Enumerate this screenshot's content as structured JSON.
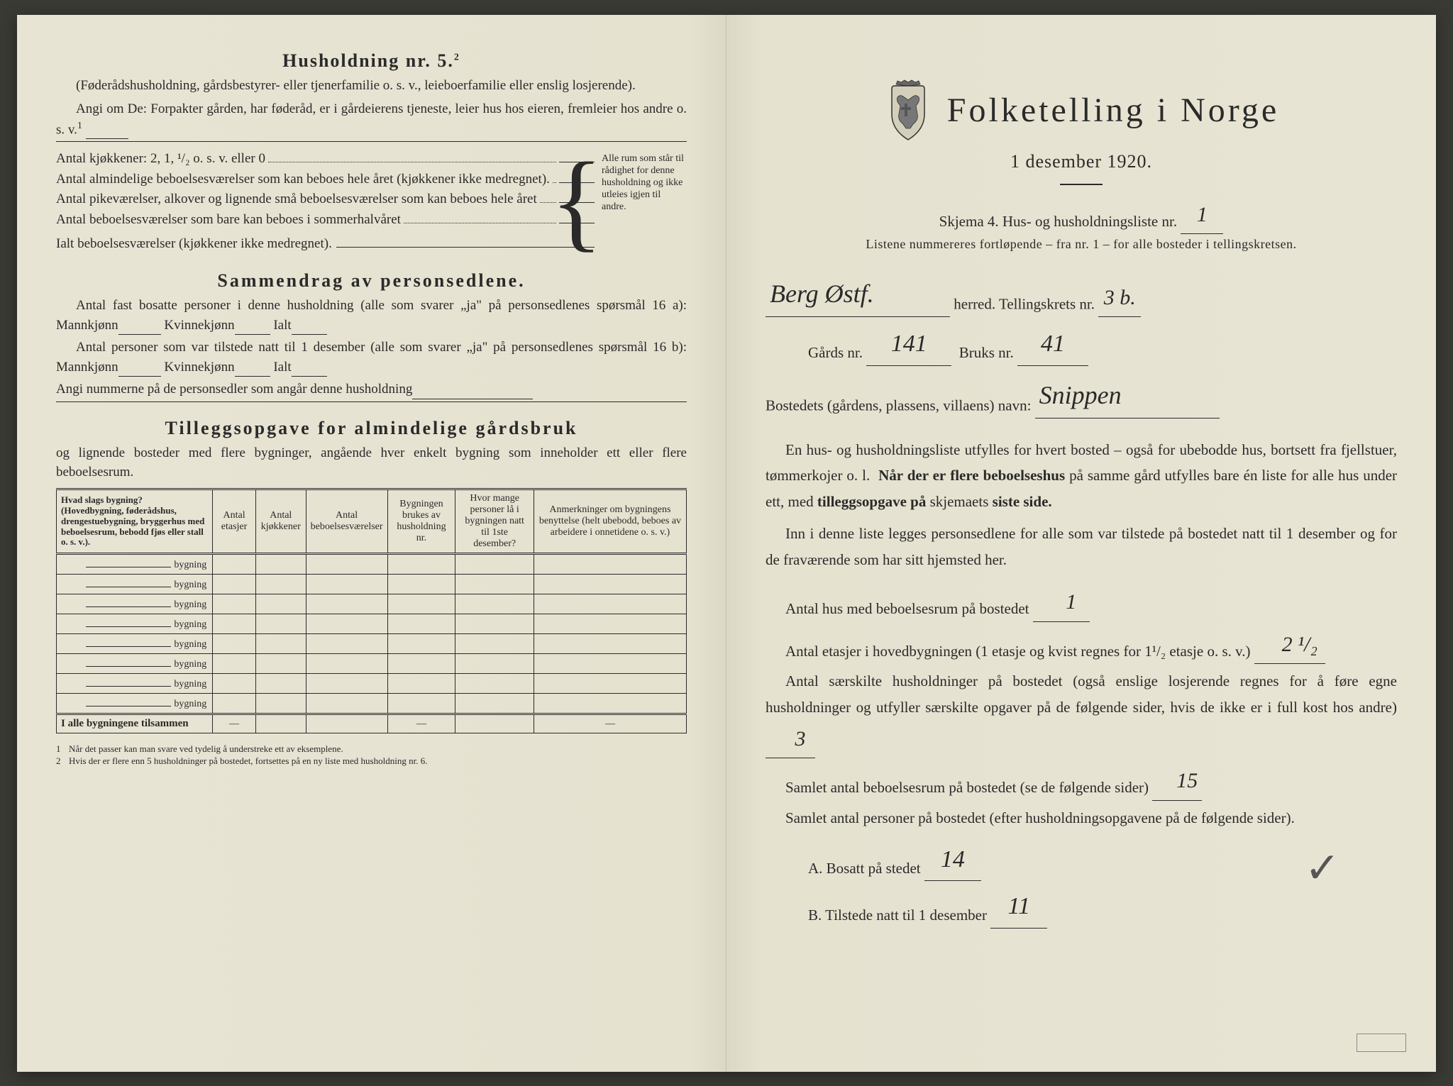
{
  "left": {
    "husholdning_title": "Husholdning nr. 5.",
    "husholdning_sup": "2",
    "husholdning_desc": "(Føderådshusholdning, gårdsbestyrer- eller tjenerfamilie o. s. v., leieboerfamilie eller enslig losjerende).",
    "angi_text": "Angi om De: Forpakter gården, har føderåd, er i gårdeierens tjeneste, leier hus hos eieren, fremleier hos andre o. s. v.",
    "angi_sup": "1",
    "kjokkener_line": "Antal kjøkkener: 2, 1, ¹/₂ o. s. v. eller 0",
    "rooms": [
      "Antal almindelige beboelsesværelser som kan beboes hele året (kjøkkener ikke medregnet).",
      "Antal pikeværelser, alkover og lignende små beboelsesværelser som kan beboes hele året",
      "Antal beboelsesværelser som bare kan beboes i sommerhalvåret",
      "Ialt beboelsesværelser (kjøkkener ikke medregnet)."
    ],
    "brace_text": "Alle rum som står til rådighet for denne husholdning og ikke utleies igjen til andre.",
    "sammendrag_title": "Sammendrag av personsedlene.",
    "sammendrag_l1": "Antal fast bosatte personer i denne husholdning (alle som svarer „ja\" på personsedlenes spørsmål 16 a): Mannkjønn",
    "kvinne": "Kvinnekjønn",
    "ialt": "Ialt",
    "sammendrag_l2": "Antal personer som var tilstede natt til 1 desember (alle som svarer „ja\" på personsedlenes spørsmål 16 b): Mannkjønn",
    "angi_numrene": "Angi nummerne på de personsedler som angår denne husholdning",
    "tillegg_title": "Tilleggsopgave for almindelige gårdsbruk",
    "tillegg_desc": "og lignende bosteder med flere bygninger, angående hver enkelt bygning som inneholder ett eller flere beboelsesrum.",
    "table": {
      "headers": [
        "Hvad slags bygning?\n(Hovedbygning, føderådshus, drengestuebygning, bryggerhus med beboelsesrum, bebodd fjøs eller stall o. s. v.).",
        "Antal etasjer",
        "Antal kjøkkener",
        "Antal beboelsesværelser",
        "Bygningen brukes av husholdning nr.",
        "Hvor mange personer lå i bygningen natt til 1ste desember?",
        "Anmerkninger om bygningens benyttelse (helt ubebodd, beboes av arbeidere i onnetidene o. s. v.)"
      ],
      "row_label": "bygning",
      "row_count": 8,
      "total_label": "I alle bygningene tilsammen"
    },
    "footnotes": [
      "Når det passer kan man svare ved tydelig å understreke ett av eksemplene.",
      "Hvis der er flere enn 5 husholdninger på bostedet, fortsettes på en ny liste med husholdning nr. 6."
    ]
  },
  "right": {
    "main_title": "Folketelling i Norge",
    "date": "1 desember 1920.",
    "skjema": "Skjema 4.  Hus- og husholdningsliste nr.",
    "liste_nr": "1",
    "listene_text": "Listene nummereres fortløpende – fra nr. 1 – for alle bosteder i tellingskretsen.",
    "herred_value": "Berg Østf.",
    "herred_label": "herred.  Tellingskrets nr.",
    "krets_nr": "3 b.",
    "gards_label": "Gårds nr.",
    "gards_nr": "141",
    "bruks_label": "Bruks nr.",
    "bruks_nr": "41",
    "bosted_label": "Bostedets (gårdens, plassens, villaens) navn:",
    "bosted_navn": "Snippen",
    "para1": "En hus- og husholdningsliste utfylles for hvert bosted – også for ubebodde hus, bortsett fra fjellstuer, tømmerkojer o. l.",
    "para1b_pre": "Når der er",
    "para1b_bold": "flere beboelseshus",
    "para1b_mid": "på samme gård utfylles bare én liste for alle hus under ett, med",
    "para1b_bold2": "tilleggsopgave på",
    "para1b_end": "skjemaets",
    "para1b_bold3": "siste side.",
    "para2": "Inn i denne liste legges personsedlene for alle som var tilstede på bostedet natt til 1 desember og for de fraværende som har sitt hjemsted her.",
    "antal_hus_label": "Antal hus med beboelsesrum på bostedet",
    "antal_hus": "1",
    "etasjer_label": "Antal etasjer i hovedbygningen (1 etasje og kvist regnes for 1¹/₂ etasje o. s. v.)",
    "etasjer": "2 ¹/₂",
    "sarskilte_label": "Antal særskilte husholdninger på bostedet (også enslige losjerende regnes for å føre egne husholdninger og utfyller særskilte opgaver på de følgende sider, hvis de ikke er i full kost hos andre)",
    "sarskilte": "3",
    "samlet_rum_label": "Samlet antal beboelsesrum på bostedet (se de følgende sider)",
    "samlet_rum": "15",
    "samlet_pers_label": "Samlet antal personer på bostedet (efter husholdningsopgavene på de følgende sider).",
    "bosatt_label": "A.  Bosatt på stedet",
    "bosatt": "14",
    "tilstede_label": "B.  Tilstede natt til 1 desember",
    "tilstede": "11"
  },
  "colors": {
    "paper": "#e8e4d4",
    "ink": "#2a2a2a",
    "background": "#3a3a35"
  }
}
